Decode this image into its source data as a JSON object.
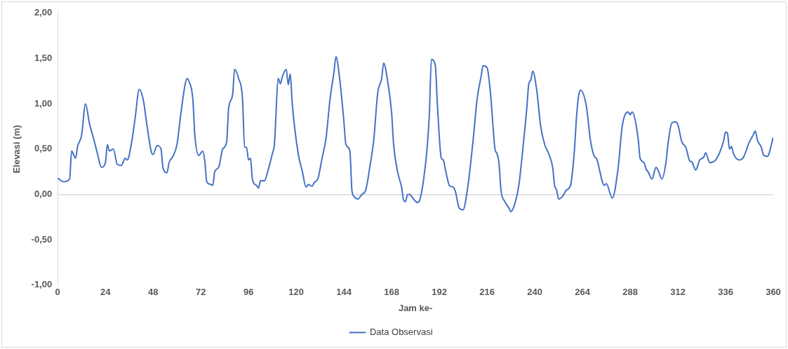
{
  "chart_data": {
    "type": "line",
    "xlabel": "Jam ke-",
    "ylabel": "Elevasi (m)",
    "xlim": [
      0,
      360
    ],
    "xticks": [
      0,
      24,
      48,
      72,
      96,
      120,
      144,
      168,
      192,
      216,
      240,
      264,
      288,
      312,
      336,
      360
    ],
    "ylim": [
      -1,
      2
    ],
    "yticks": [
      {
        "value": -1,
        "label": "-1,00"
      },
      {
        "value": -0.5,
        "label": "-0,50"
      },
      {
        "value": 0,
        "label": "0,00"
      },
      {
        "value": 0.5,
        "label": "0,50"
      },
      {
        "value": 1,
        "label": "1,00"
      },
      {
        "value": 1.5,
        "label": "1,50"
      },
      {
        "value": 2,
        "label": "2,00"
      }
    ],
    "legend": "bottom",
    "marker": "none",
    "line_style": "solid",
    "series": [
      {
        "name": "Data Observasi",
        "color": "#4472c4",
        "x": [
          0,
          3,
          6,
          7,
          9,
          10,
          12,
          14,
          16,
          18,
          20,
          22,
          24,
          25,
          26,
          28,
          30,
          32,
          34,
          35,
          37,
          39,
          41,
          43,
          45,
          47,
          48,
          50,
          52,
          53,
          55,
          56,
          58,
          60,
          62,
          64,
          65,
          66,
          68,
          69,
          71,
          73,
          74,
          75,
          77,
          78,
          79,
          81,
          83,
          85,
          86,
          88,
          89,
          91,
          93,
          94,
          95,
          96,
          97,
          98,
          100,
          101,
          102,
          104,
          106,
          108,
          109,
          111,
          112,
          113,
          115,
          116,
          117,
          118,
          121,
          123,
          125,
          126,
          128,
          129,
          131,
          133,
          135,
          137,
          139,
          140,
          142,
          144,
          145,
          147,
          148,
          149,
          151,
          153,
          155,
          157,
          159,
          161,
          163,
          164,
          166,
          168,
          169,
          171,
          173,
          174,
          175,
          176,
          177,
          179,
          181,
          182,
          184,
          186,
          187,
          188,
          190,
          191,
          193,
          194,
          195,
          196,
          197,
          199,
          200,
          202,
          204,
          205,
          207,
          209,
          211,
          213,
          214,
          216,
          218,
          219,
          220,
          221,
          222,
          223,
          225,
          227,
          228,
          230,
          232,
          234,
          236,
          237,
          238,
          239,
          241,
          243,
          245,
          247,
          249,
          250,
          251,
          252,
          254,
          256,
          258,
          260,
          261,
          262,
          263,
          266,
          268,
          270,
          271,
          275,
          276,
          279,
          282,
          284,
          287,
          288,
          289,
          292,
          293,
          295,
          296,
          297,
          299,
          301,
          302,
          304,
          306,
          307,
          309,
          311,
          312,
          314,
          316,
          318,
          319,
          321,
          323,
          325,
          326,
          328,
          331,
          333,
          335,
          336,
          337,
          338,
          339,
          340,
          343,
          345,
          348,
          350,
          351,
          352,
          354,
          355,
          357,
          360
        ],
        "values": [
          0.18,
          0.14,
          0.17,
          0.48,
          0.4,
          0.53,
          0.65,
          1.0,
          0.78,
          0.62,
          0.45,
          0.3,
          0.35,
          0.55,
          0.48,
          0.5,
          0.33,
          0.32,
          0.4,
          0.38,
          0.55,
          0.85,
          1.16,
          1.05,
          0.75,
          0.48,
          0.44,
          0.54,
          0.5,
          0.29,
          0.24,
          0.35,
          0.42,
          0.55,
          0.9,
          1.2,
          1.28,
          1.25,
          1.05,
          0.65,
          0.43,
          0.48,
          0.37,
          0.14,
          0.11,
          0.1,
          0.25,
          0.3,
          0.5,
          0.58,
          0.95,
          1.1,
          1.38,
          1.28,
          1.05,
          0.52,
          0.52,
          0.38,
          0.4,
          0.16,
          0.1,
          0.07,
          0.15,
          0.15,
          0.28,
          0.45,
          0.55,
          1.28,
          1.22,
          1.3,
          1.38,
          1.21,
          1.33,
          1.0,
          0.45,
          0.26,
          0.08,
          0.11,
          0.09,
          0.13,
          0.18,
          0.4,
          0.62,
          1.05,
          1.35,
          1.52,
          1.25,
          0.8,
          0.55,
          0.48,
          0.05,
          -0.02,
          -0.05,
          0.0,
          0.05,
          0.3,
          0.6,
          1.12,
          1.28,
          1.45,
          1.25,
          0.9,
          0.55,
          0.25,
          0.08,
          -0.06,
          -0.08,
          0.0,
          0.0,
          -0.05,
          -0.09,
          -0.07,
          0.15,
          0.55,
          0.9,
          1.49,
          1.42,
          1.0,
          0.4,
          0.38,
          0.28,
          0.18,
          0.1,
          0.08,
          0.04,
          -0.15,
          -0.17,
          -0.1,
          0.2,
          0.6,
          1.05,
          1.3,
          1.42,
          1.4,
          1.05,
          0.75,
          0.5,
          0.45,
          0.35,
          0.05,
          -0.08,
          -0.15,
          -0.19,
          -0.1,
          0.1,
          0.5,
          0.95,
          1.22,
          1.26,
          1.36,
          1.15,
          0.75,
          0.55,
          0.45,
          0.3,
          0.1,
          0.05,
          -0.05,
          -0.02,
          0.05,
          0.1,
          0.5,
          0.85,
          1.08,
          1.15,
          0.97,
          0.6,
          0.42,
          0.4,
          0.1,
          0.12,
          -0.04,
          0.3,
          0.75,
          0.91,
          0.88,
          0.91,
          0.62,
          0.4,
          0.35,
          0.28,
          0.25,
          0.17,
          0.3,
          0.27,
          0.17,
          0.35,
          0.55,
          0.79,
          0.8,
          0.77,
          0.58,
          0.52,
          0.37,
          0.36,
          0.27,
          0.38,
          0.41,
          0.46,
          0.35,
          0.38,
          0.46,
          0.59,
          0.69,
          0.67,
          0.5,
          0.53,
          0.45,
          0.38,
          0.41,
          0.58,
          0.66,
          0.7,
          0.6,
          0.52,
          0.44,
          0.42,
          0.63
        ]
      }
    ]
  }
}
